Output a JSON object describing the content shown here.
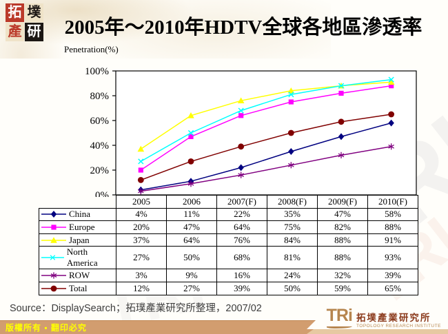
{
  "header": {
    "title": "2005年～2010年HDTV全球各地區滲透率"
  },
  "seal_logo": {
    "chars": [
      "拓",
      "墣",
      "產",
      "研"
    ]
  },
  "chart_data": {
    "type": "line",
    "title": "2005年～2010年HDTV全球各地區滲透率",
    "ylabel": "Penetration(%)",
    "xlabel": "",
    "categories": [
      "2005",
      "2006",
      "2007(F)",
      "2008(F)",
      "2009(F)",
      "2010(F)"
    ],
    "series": [
      {
        "name": "China",
        "color": "#000080",
        "marker": "diamond",
        "values": [
          4,
          11,
          22,
          35,
          47,
          58
        ]
      },
      {
        "name": "Europe",
        "color": "#FF00FF",
        "marker": "square",
        "values": [
          20,
          47,
          64,
          75,
          82,
          88
        ]
      },
      {
        "name": "Japan",
        "color": "#FFFF00",
        "marker": "triangle",
        "values": [
          37,
          64,
          76,
          84,
          88,
          91
        ]
      },
      {
        "name": "North America",
        "color": "#00FFFF",
        "marker": "x",
        "values": [
          27,
          50,
          68,
          81,
          88,
          93
        ]
      },
      {
        "name": "ROW",
        "color": "#800080",
        "marker": "asterisk",
        "values": [
          3,
          9,
          16,
          24,
          32,
          39
        ]
      },
      {
        "name": "Total",
        "color": "#800000",
        "marker": "circle",
        "values": [
          12,
          27,
          39,
          50,
          59,
          65
        ]
      }
    ],
    "ylim": [
      0,
      100
    ],
    "ytick_step": 20,
    "ytick_labels": [
      "0%",
      "20%",
      "40%",
      "60%",
      "80%",
      "100%"
    ],
    "value_suffix": "%",
    "grid": false,
    "legend_position": "table-rows-left",
    "plot_bg": "#FFFFFF"
  },
  "footer": {
    "source": "Source：DisplaySearch；拓璞產業研究所整理，2007/02",
    "copyright": "版權所有 ▪ 翻印必究"
  },
  "tri_logo": {
    "acronym": "TRi",
    "name_zh": "拓墣產業研究所",
    "name_en": "TOPOLOGY RESEARCH INSTITUTE"
  },
  "watermark": {
    "text": "TRI"
  }
}
